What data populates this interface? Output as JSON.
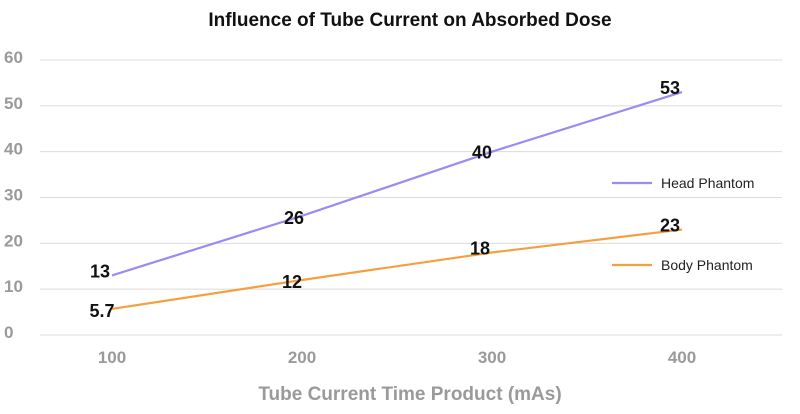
{
  "chart_data": {
    "type": "line",
    "title": "Influence of Tube Current on Absorbed Dose",
    "xlabel": "Tube Current Time Product (mAs)",
    "ylabel": "",
    "x": [
      100,
      200,
      300,
      400
    ],
    "x_tick_labels": [
      "100",
      "200",
      "300",
      "400"
    ],
    "ylim": [
      0,
      60
    ],
    "y_ticks": [
      0,
      10,
      20,
      30,
      40,
      50,
      60
    ],
    "y_tick_labels": [
      "0",
      "10",
      "20",
      "30",
      "40",
      "50",
      "60"
    ],
    "grid": true,
    "legend_position": "right",
    "series": [
      {
        "name": "Head Phantom",
        "color": "#9a8cf0",
        "values": [
          13,
          26,
          40,
          53
        ],
        "labels": [
          "13",
          "26",
          "40",
          "53"
        ]
      },
      {
        "name": "Body Phantom",
        "color": "#f5a040",
        "values": [
          5.7,
          12,
          18,
          23
        ],
        "labels": [
          "5.7",
          "12",
          "18",
          "23"
        ]
      }
    ]
  }
}
